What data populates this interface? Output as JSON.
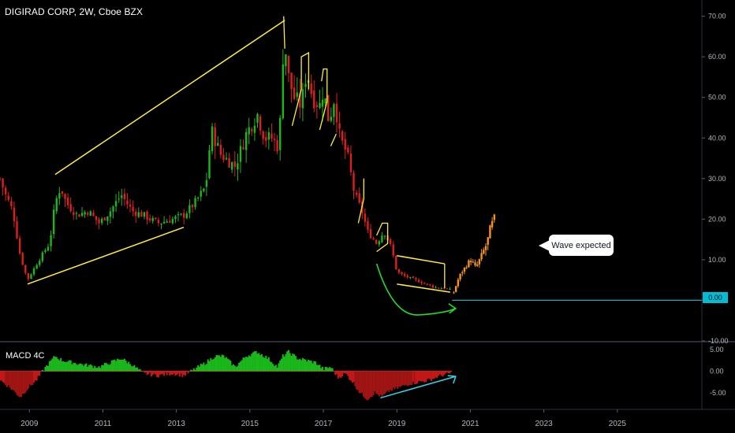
{
  "title": "DIGIRAD CORP, 2W, Cboe BZX",
  "indicator_label": "MACD 4C",
  "annotation_text": "Wave expected",
  "last_value_badge": "0.00",
  "colors": {
    "up": "#1ab81a",
    "down": "#e11d1d",
    "projection": "#f7931a",
    "trendline": "#ffee3a",
    "arrow": "#22e022",
    "macd_arrow": "#2fd5e8",
    "level_line": "#00bcd4"
  },
  "chart_data": [
    {
      "type": "candlestick",
      "title": "DIGIRAD CORP, 2W, Cboe BZX",
      "ylim": [
        -10,
        74
      ],
      "y_ticks": [
        "70.00",
        "60.00",
        "50.00",
        "40.00",
        "30.00",
        "20.00",
        "10.00",
        "0.00",
        "-10.00"
      ],
      "x_ticks": [
        "2009",
        "2011",
        "2013",
        "2015",
        "2017",
        "2019",
        "2021",
        "2023",
        "2025"
      ],
      "xlim": [
        2008.2,
        2027.3
      ],
      "price_path": [
        [
          2008.2,
          30
        ],
        [
          2008.35,
          26
        ],
        [
          2008.55,
          22
        ],
        [
          2008.75,
          11
        ],
        [
          2008.95,
          5
        ],
        [
          2009.2,
          9
        ],
        [
          2009.4,
          12
        ],
        [
          2009.55,
          14
        ],
        [
          2009.7,
          24
        ],
        [
          2009.85,
          28
        ],
        [
          2010.0,
          24
        ],
        [
          2010.3,
          21
        ],
        [
          2010.6,
          22
        ],
        [
          2010.9,
          19
        ],
        [
          2011.2,
          22
        ],
        [
          2011.5,
          26
        ],
        [
          2011.8,
          22
        ],
        [
          2012.1,
          21
        ],
        [
          2012.5,
          19
        ],
        [
          2012.9,
          20
        ],
        [
          2013.2,
          21
        ],
        [
          2013.5,
          24
        ],
        [
          2013.8,
          28
        ],
        [
          2013.95,
          42
        ],
        [
          2014.2,
          36
        ],
        [
          2014.6,
          33
        ],
        [
          2014.9,
          41
        ],
        [
          2015.2,
          46
        ],
        [
          2015.4,
          40
        ],
        [
          2015.6,
          40
        ],
        [
          2015.75,
          38
        ],
        [
          2015.85,
          46
        ],
        [
          2015.92,
          66
        ],
        [
          2016.05,
          55
        ],
        [
          2016.2,
          50
        ],
        [
          2016.4,
          48
        ],
        [
          2016.55,
          57
        ],
        [
          2016.7,
          50
        ],
        [
          2016.9,
          48
        ],
        [
          2017.0,
          52
        ],
        [
          2017.15,
          44
        ],
        [
          2017.3,
          50
        ],
        [
          2017.45,
          40
        ],
        [
          2017.65,
          36
        ],
        [
          2017.85,
          26
        ],
        [
          2018.05,
          22
        ],
        [
          2018.2,
          17
        ],
        [
          2018.45,
          14
        ],
        [
          2018.65,
          17
        ],
        [
          2018.85,
          13
        ],
        [
          2019.0,
          7
        ],
        [
          2019.2,
          6
        ],
        [
          2019.5,
          5
        ],
        [
          2019.8,
          4
        ],
        [
          2020.1,
          3
        ],
        [
          2020.3,
          3
        ],
        [
          2020.45,
          2.5
        ]
      ],
      "projection_path": [
        [
          2020.55,
          2
        ],
        [
          2020.7,
          6
        ],
        [
          2020.85,
          8
        ],
        [
          2021.0,
          10
        ],
        [
          2021.15,
          8
        ],
        [
          2021.3,
          11
        ],
        [
          2021.45,
          14
        ],
        [
          2021.55,
          18
        ],
        [
          2021.7,
          21
        ]
      ],
      "trendlines": [
        {
          "from": [
            2008.95,
            4
          ],
          "to": [
            2013.2,
            18
          ]
        },
        {
          "from": [
            2009.7,
            31
          ],
          "to": [
            2015.95,
            69
          ]
        },
        {
          "from": [
            2019.0,
            4
          ],
          "to": [
            2020.45,
            2
          ]
        },
        {
          "from": [
            2019.0,
            11
          ],
          "to": [
            2020.3,
            9
          ]
        }
      ],
      "level_line": 0.0,
      "annotations": [
        "Wave expected"
      ]
    },
    {
      "type": "bar",
      "title": "MACD 4C",
      "ylim": [
        -8.5,
        6.5
      ],
      "y_ticks": [
        "5.00",
        "0.00",
        "-5.00"
      ],
      "histogram_path": [
        [
          2008.2,
          -2
        ],
        [
          2008.5,
          -4
        ],
        [
          2008.75,
          -6
        ],
        [
          2008.95,
          -4
        ],
        [
          2009.2,
          -2
        ],
        [
          2009.4,
          0.5
        ],
        [
          2009.55,
          2
        ],
        [
          2009.7,
          3.5
        ],
        [
          2009.9,
          2.5
        ],
        [
          2010.2,
          2
        ],
        [
          2010.5,
          1.5
        ],
        [
          2010.9,
          1
        ],
        [
          2011.2,
          2
        ],
        [
          2011.5,
          3
        ],
        [
          2011.8,
          1.5
        ],
        [
          2012.1,
          -0.5
        ],
        [
          2012.5,
          -1
        ],
        [
          2012.9,
          -0.5
        ],
        [
          2013.2,
          -1
        ],
        [
          2013.5,
          0.5
        ],
        [
          2013.8,
          2
        ],
        [
          2014.05,
          3.5
        ],
        [
          2014.3,
          3.5
        ],
        [
          2014.6,
          1
        ],
        [
          2014.9,
          3.5
        ],
        [
          2015.2,
          4.5
        ],
        [
          2015.5,
          3
        ],
        [
          2015.75,
          1
        ],
        [
          2015.9,
          3.5
        ],
        [
          2016.05,
          4.5
        ],
        [
          2016.3,
          3
        ],
        [
          2016.55,
          2.5
        ],
        [
          2016.8,
          2
        ],
        [
          2017.0,
          0.5
        ],
        [
          2017.2,
          1
        ],
        [
          2017.4,
          -1.5
        ],
        [
          2017.6,
          -0.5
        ],
        [
          2017.8,
          -2.5
        ],
        [
          2018.0,
          -5
        ],
        [
          2018.2,
          -6.5
        ],
        [
          2018.4,
          -5
        ],
        [
          2018.6,
          -6
        ],
        [
          2018.8,
          -4.5
        ],
        [
          2019.0,
          -4
        ],
        [
          2019.3,
          -3
        ],
        [
          2019.6,
          -2.5
        ],
        [
          2019.9,
          -2
        ],
        [
          2020.2,
          -1
        ],
        [
          2020.45,
          -0.5
        ]
      ]
    }
  ]
}
